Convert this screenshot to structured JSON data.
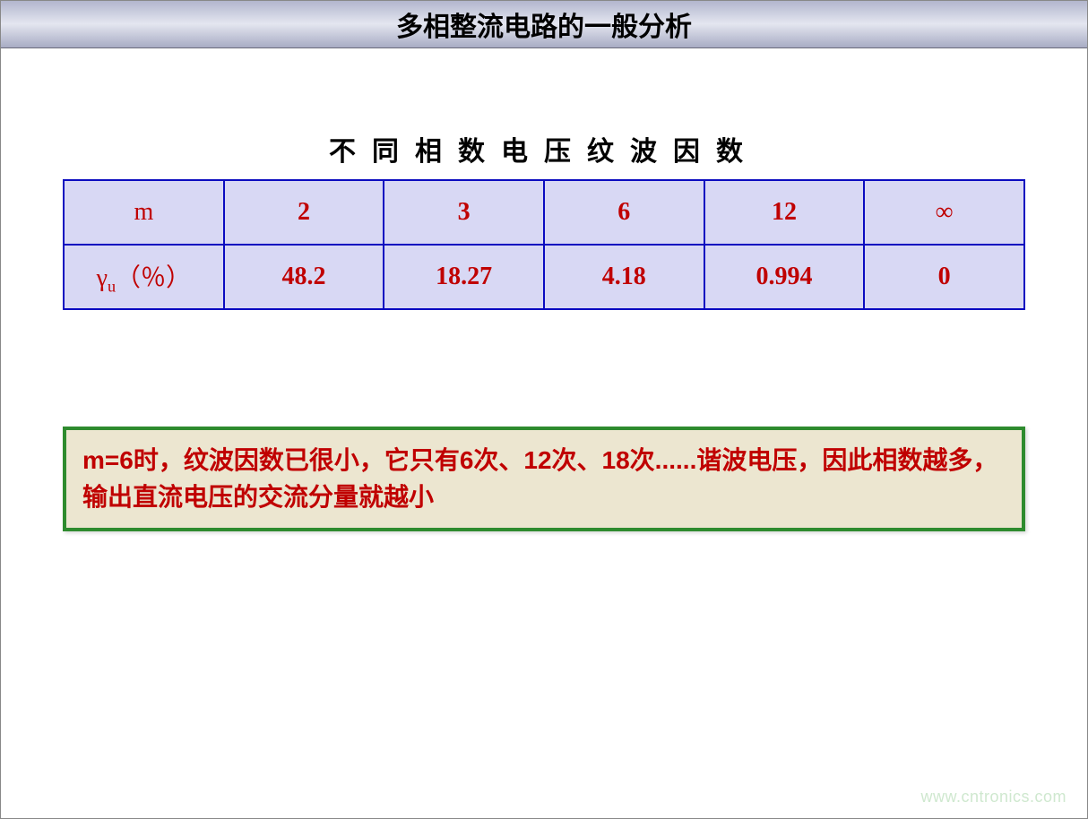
{
  "header": {
    "title": "多相整流电路的一般分析"
  },
  "table": {
    "title": "不同相数电压纹波因数",
    "row1_label_html": "m",
    "row2_label_html": "γ<span class='sub'>u</span>（％）",
    "columns": [
      "2",
      "3",
      "6",
      "12",
      "∞"
    ],
    "row2_values": [
      "48.2",
      "18.27",
      "4.18",
      "0.994",
      "0"
    ],
    "border_color": "#0b0bc0",
    "cell_bg": "#d8d8f4",
    "text_color": "#c00000"
  },
  "note": {
    "text": "m=6时，纹波因数已很小，它只有6次、12次、18次......谐波电压，因此相数越多，输出直流电压的交流分量就越小",
    "border_color": "#2e8b2e",
    "bg_color": "#ece6d0",
    "text_color": "#c00000"
  },
  "watermark": "www.cntronics.com"
}
